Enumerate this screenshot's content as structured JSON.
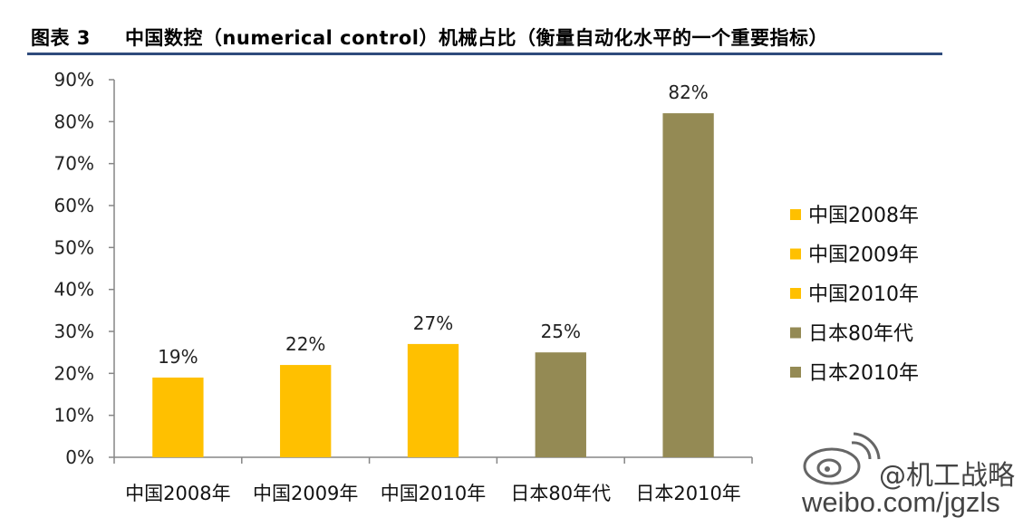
{
  "figure": {
    "label": "图表 3",
    "title": "中国数控（numerical control）机械占比（衡量自动化水平的一个重要指标）"
  },
  "colors": {
    "china": "#FFC000",
    "japan": "#948A54",
    "axis": "#868686",
    "rule": "#2F4B7C"
  },
  "watermark": {
    "handle": "@机工战略",
    "url": "weibo.com/jgzls",
    "logo_icon": "weibo-logo-icon"
  },
  "chart_data": {
    "type": "bar",
    "categories": [
      "中国2008年",
      "中国2009年",
      "中国2010年",
      "日本80年代",
      "日本2010年"
    ],
    "values": [
      19,
      22,
      27,
      25,
      82
    ],
    "value_labels": [
      "19%",
      "22%",
      "27%",
      "25%",
      "82%"
    ],
    "bar_colors": [
      "#FFC000",
      "#FFC000",
      "#FFC000",
      "#948A54",
      "#948A54"
    ],
    "ylim": [
      0,
      90
    ],
    "yticks": [
      "0%",
      "10%",
      "20%",
      "30%",
      "40%",
      "50%",
      "60%",
      "70%",
      "80%",
      "90%"
    ],
    "grid": false,
    "legend": {
      "position": "right",
      "entries": [
        {
          "label": "中国2008年",
          "color": "#FFC000"
        },
        {
          "label": "中国2009年",
          "color": "#FFC000"
        },
        {
          "label": "中国2010年",
          "color": "#FFC000"
        },
        {
          "label": "日本80年代",
          "color": "#948A54"
        },
        {
          "label": "日本2010年",
          "color": "#948A54"
        }
      ]
    }
  }
}
